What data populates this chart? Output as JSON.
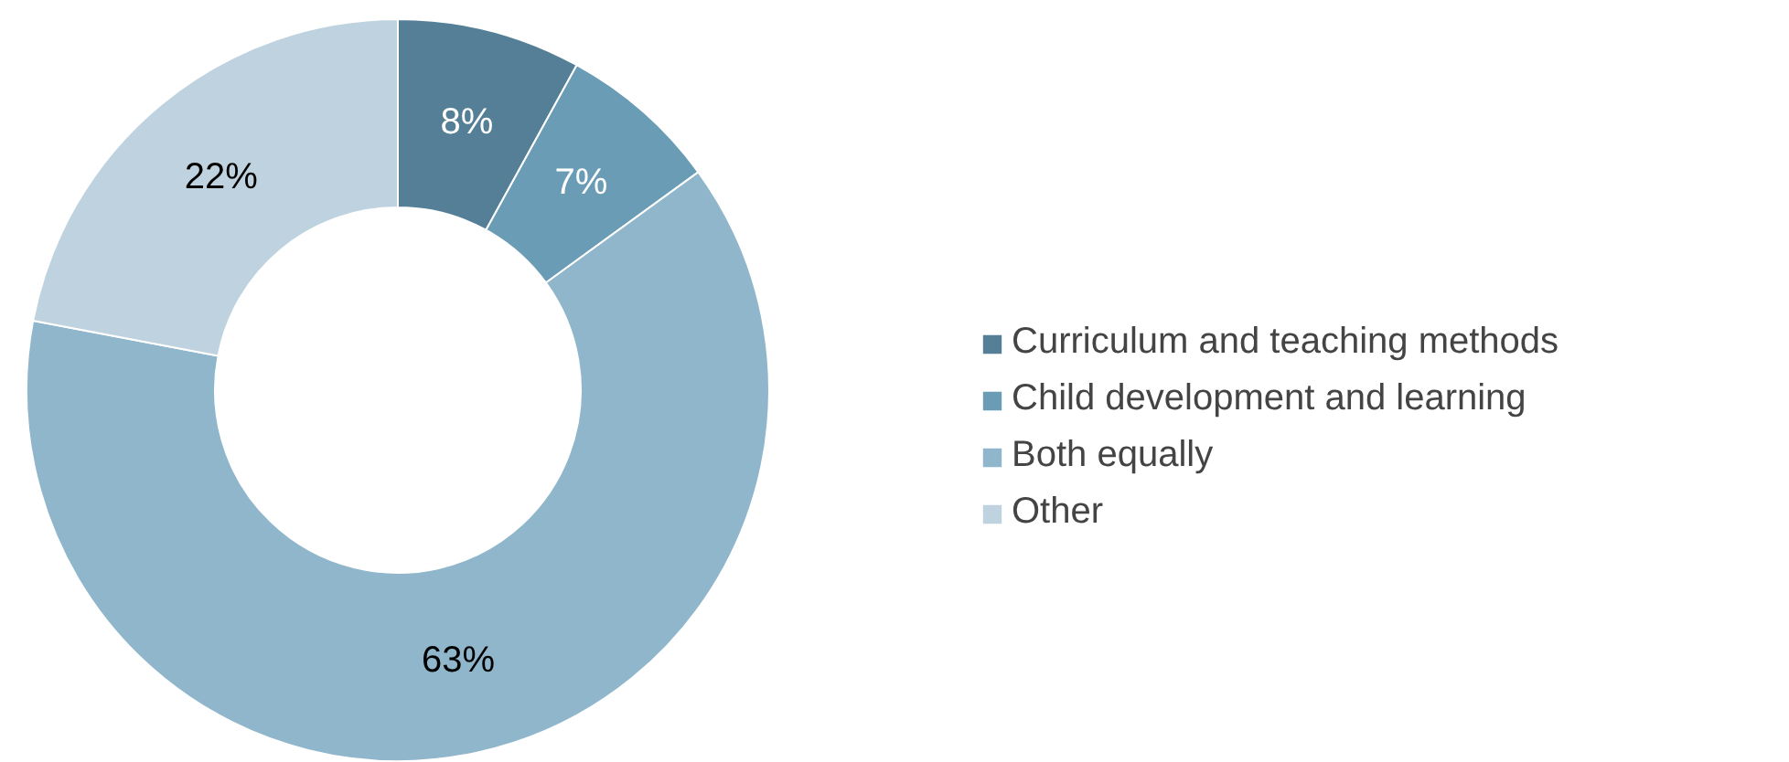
{
  "chart_data": {
    "type": "donut",
    "categories": [
      "Curriculum and teaching methods",
      "Child development and learning",
      "Both equally",
      "Other"
    ],
    "values": [
      8,
      7,
      63,
      22
    ],
    "colors": [
      "#547f96",
      "#6a9db5",
      "#8fb6cb",
      "#bed3df"
    ],
    "value_labels": [
      "8%",
      "7%",
      "63%",
      "22%"
    ],
    "legend": "right"
  }
}
